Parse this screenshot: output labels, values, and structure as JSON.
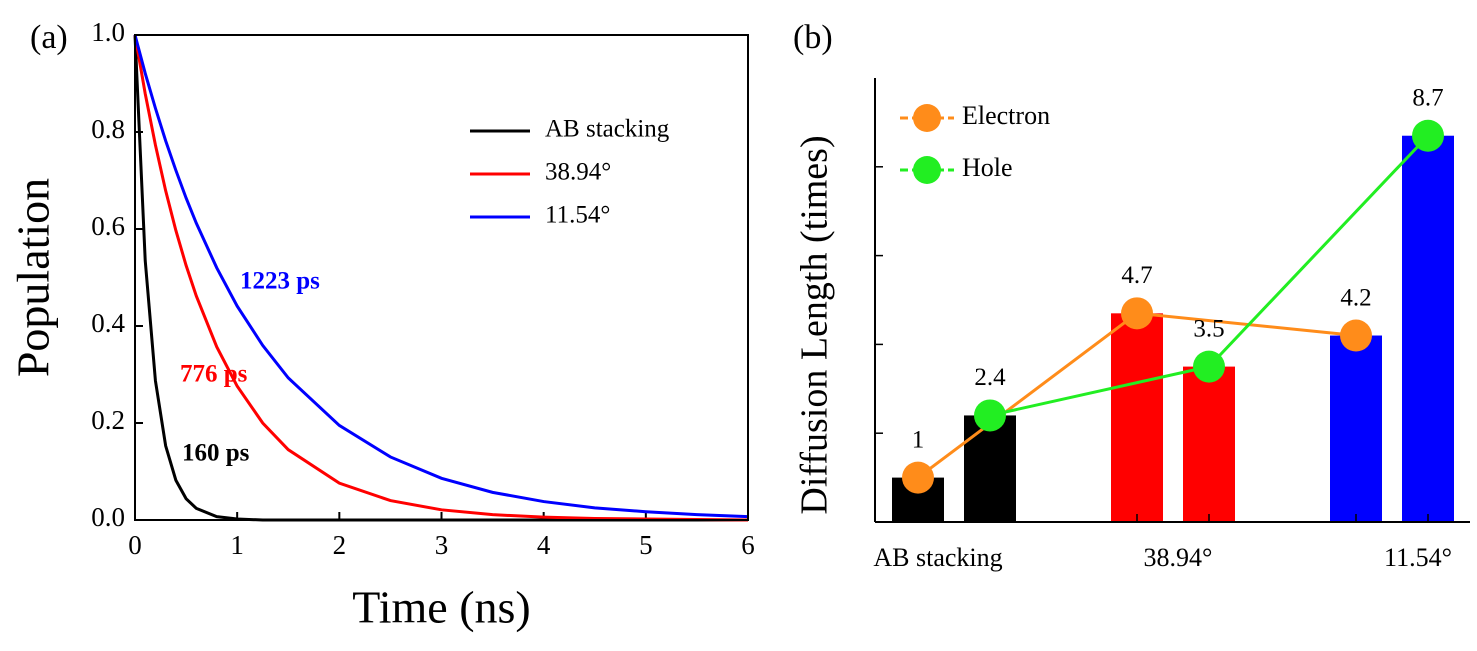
{
  "chart_data": [
    {
      "type": "line",
      "panel_label": "(a)",
      "x_label": "Time (ns)",
      "y_label": "Population",
      "x": [
        0,
        0.1,
        0.2,
        0.3,
        0.4,
        0.5,
        0.6,
        0.8,
        1,
        1.25,
        1.5,
        2,
        2.5,
        3,
        3.5,
        4,
        4.5,
        5,
        5.5,
        6
      ],
      "series": [
        {
          "name": "AB stacking",
          "color": "#000000",
          "values": [
            1,
            0.535,
            0.287,
            0.153,
            0.082,
            0.044,
            0.024,
            0.007,
            0.002,
            0,
            0,
            0,
            0,
            0,
            0,
            0,
            0,
            0,
            0,
            0
          ]
        },
        {
          "name": "38.94°",
          "color": "#ff0000",
          "values": [
            1,
            0.879,
            0.773,
            0.679,
            0.597,
            0.525,
            0.462,
            0.357,
            0.276,
            0.2,
            0.145,
            0.076,
            0.04,
            0.021,
            0.011,
            0.006,
            0.003,
            0.002,
            0.001,
            0
          ]
        },
        {
          "name": "11.54°",
          "color": "#0000ff",
          "values": [
            1,
            0.921,
            0.849,
            0.782,
            0.721,
            0.664,
            0.612,
            0.52,
            0.441,
            0.36,
            0.293,
            0.195,
            0.13,
            0.086,
            0.057,
            0.038,
            0.025,
            0.017,
            0.011,
            0.007
          ]
        }
      ],
      "annotations": [
        {
          "text": "1223 ps",
          "color": "#0000ff"
        },
        {
          "text": "776 ps",
          "color": "#ff0000"
        },
        {
          "text": "160 ps",
          "color": "#000000"
        }
      ],
      "xlim": [
        0,
        6
      ],
      "xticks": [
        0,
        1,
        2,
        3,
        4,
        5,
        6
      ],
      "ylim": [
        0,
        1
      ],
      "yticks": [
        {
          "value": 0,
          "label": "0.0"
        },
        {
          "value": 0.2,
          "label": "0.2"
        },
        {
          "value": 0.4,
          "label": "0.4"
        },
        {
          "value": 0.6,
          "label": "0.6"
        },
        {
          "value": 0.8,
          "label": "0.8"
        },
        {
          "value": 1,
          "label": "1.0"
        }
      ],
      "legend": "upper right"
    },
    {
      "type": "bar",
      "panel_label": "(b)",
      "y_label": "Diffusion Length (times)",
      "categories": [
        "AB stacking",
        "38.94°",
        "11.54°"
      ],
      "bar_colors": [
        "#000000",
        "#ff0000",
        "#0000ff"
      ],
      "series": [
        {
          "name": "Electron",
          "color": "#ff8c1a",
          "values": [
            1,
            4.7,
            4.2
          ]
        },
        {
          "name": "Hole",
          "color": "#22ee22",
          "values": [
            2.4,
            3.5,
            8.7
          ]
        }
      ],
      "ylim": [
        0,
        10
      ],
      "yticks": [
        2,
        4,
        6,
        8
      ],
      "ytick_labels": false,
      "legend": "upper left"
    }
  ]
}
